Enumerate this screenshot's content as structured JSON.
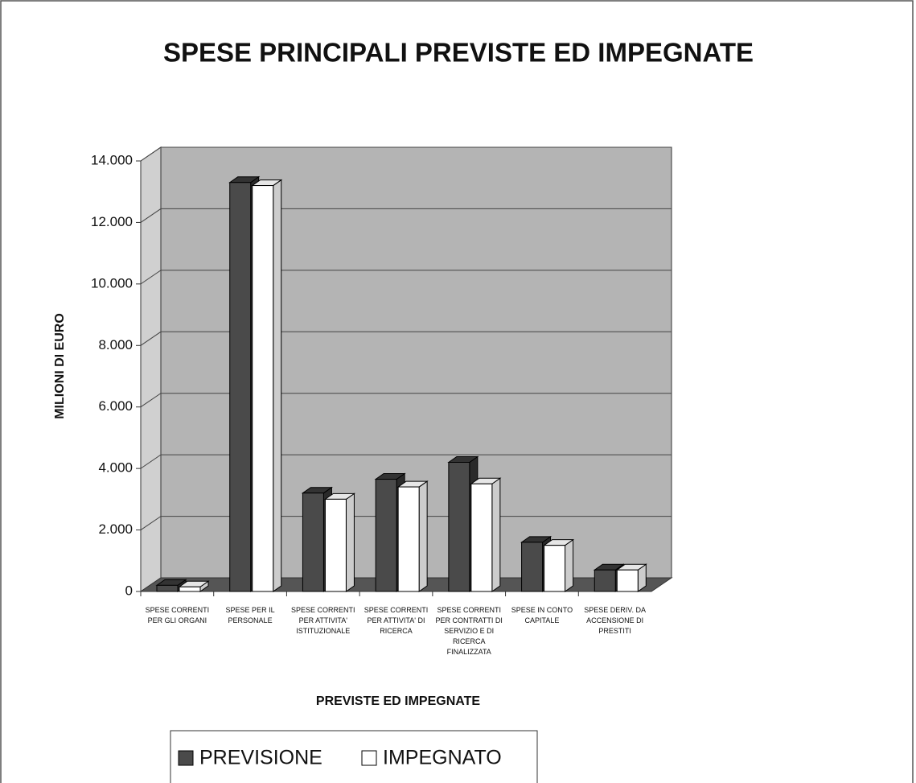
{
  "chart_data": {
    "type": "bar3d",
    "title": "SPESE PRINCIPALI PREVISTE ED IMPEGNATE",
    "y_label": "MILIONI DI EURO",
    "x_label": "PREVISTE ED IMPEGNATE",
    "categories": [
      "SPESE CORRENTI PER GLI ORGANI",
      "SPESE PER IL PERSONALE",
      "SPESE CORRENTI PER ATTIVITA' ISTITUZIONALE",
      "SPESE CORRENTI PER ATTIVITA' DI RICERCA",
      "SPESE CORRENTI PER CONTRATTI DI SERVIZIO E DI RICERCA FINALIZZATA",
      "SPESE IN CONTO CAPITALE",
      "SPESE DERIV. DA ACCENSIONE DI PRESTITI"
    ],
    "series": [
      {
        "name": "PREVISIONE",
        "color": "#4a4a4a",
        "values": [
          200,
          13300,
          3200,
          3650,
          4200,
          1600,
          700
        ]
      },
      {
        "name": "IMPEGNATO",
        "color": "#ffffff",
        "values": [
          150,
          13200,
          3000,
          3400,
          3500,
          1500,
          700
        ]
      }
    ],
    "ylim": [
      0,
      14000
    ],
    "yticks": [
      0,
      {
        "value": 2000,
        "label": "2.000"
      },
      {
        "value": 4000,
        "label": "4.000"
      },
      {
        "value": 6000,
        "label": "6.000"
      },
      {
        "value": 8000,
        "label": "8.000"
      },
      {
        "value": 10000,
        "label": "10.000"
      },
      {
        "value": 12000,
        "label": "12.000"
      },
      {
        "value": 14000,
        "label": "14.000"
      }
    ],
    "grid": true
  }
}
